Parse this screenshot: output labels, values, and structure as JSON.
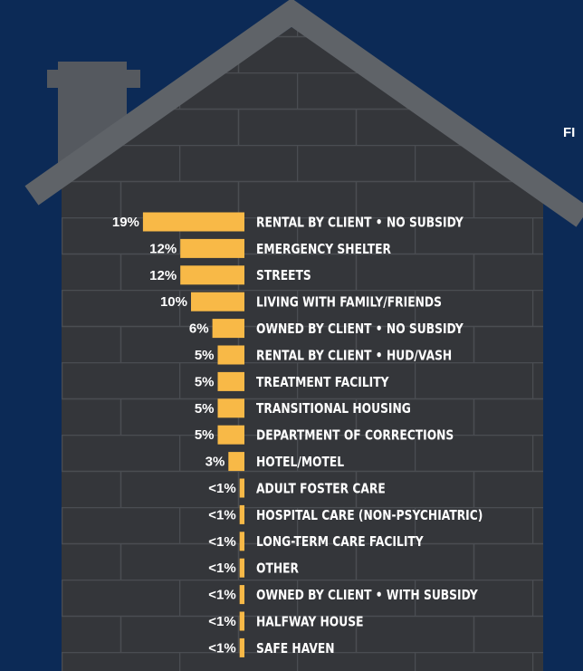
{
  "chart_data": {
    "type": "bar",
    "orientation": "horizontal",
    "title": "FI",
    "categories": [
      "RENTAL BY CLIENT • NO SUBSIDY",
      "EMERGENCY SHELTER",
      "STREETS",
      "LIVING WITH FAMILY/FRIENDS",
      "OWNED BY CLIENT • NO SUBSIDY",
      "RENTAL BY CLIENT • HUD/VASH",
      "TREATMENT FACILITY",
      "TRANSITIONAL HOUSING",
      "DEPARTMENT OF CORRECTIONS",
      "HOTEL/MOTEL",
      "ADULT FOSTER CARE",
      "HOSPITAL CARE (NON-PSYCHIATRIC)",
      "LONG-TERM CARE FACILITY",
      "OTHER",
      "OWNED BY CLIENT • WITH SUBSIDY",
      "HALFWAY HOUSE",
      "SAFE HAVEN"
    ],
    "values": [
      19,
      12,
      12,
      10,
      6,
      5,
      5,
      5,
      5,
      3,
      0.9,
      0.9,
      0.9,
      0.9,
      0.9,
      0.9,
      0.9
    ],
    "value_labels": [
      "19%",
      "12%",
      "12%",
      "10%",
      "6%",
      "5%",
      "5%",
      "5%",
      "5%",
      "3%",
      "<1%",
      "<1%",
      "<1%",
      "<1%",
      "<1%",
      "<1%",
      "<1%"
    ],
    "color": "#f8b947"
  }
}
